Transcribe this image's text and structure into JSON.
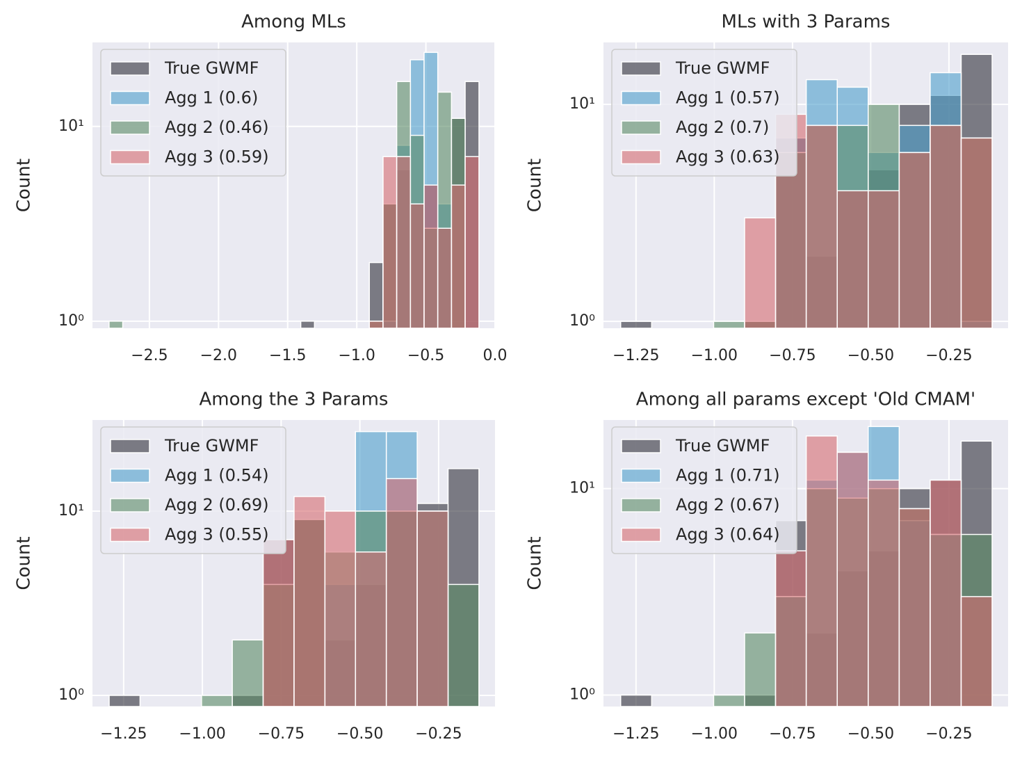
{
  "chart_data": [
    {
      "type": "histogram",
      "title": "Among MLs",
      "ylabel": "Count",
      "log_y": true,
      "grid": true,
      "legend": "upper left",
      "bins": [
        -2.792,
        -2.693,
        -2.594,
        -2.495,
        -2.396,
        -2.296,
        -2.197,
        -2.098,
        -1.999,
        -1.9,
        -1.801,
        -1.702,
        -1.603,
        -1.504,
        -1.405,
        -1.306,
        -1.206,
        -1.107,
        -1.008,
        -0.909,
        -0.81,
        -0.711,
        -0.612,
        -0.513,
        -0.414,
        -0.315,
        -0.216,
        -0.116
      ],
      "series": [
        {
          "name": "True GWMF",
          "color": "#2f2f38",
          "values": [
            0,
            0,
            0,
            0,
            0,
            0,
            0,
            0,
            0,
            0,
            0,
            0,
            0,
            0,
            1,
            0,
            0,
            0,
            0,
            2,
            4,
            6,
            4,
            5,
            3,
            11,
            17
          ]
        },
        {
          "name": "Agg 1 (0.6)",
          "color": "#4c9fcb",
          "values": [
            0,
            0,
            0,
            0,
            0,
            0,
            0,
            0,
            0,
            0,
            0,
            0,
            0,
            0,
            0,
            0,
            0,
            0,
            0,
            0,
            1,
            8,
            22,
            24,
            4,
            0,
            0
          ]
        },
        {
          "name": "Agg 2 (0.46)",
          "color": "#5a8a65",
          "values": [
            1,
            0,
            0,
            0,
            0,
            0,
            0,
            0,
            0,
            0,
            0,
            0,
            0,
            0,
            0,
            0,
            0,
            0,
            0,
            1,
            4,
            17,
            9,
            3,
            15,
            11,
            0
          ]
        },
        {
          "name": "Agg 3 (0.59)",
          "color": "#d56b6f",
          "values": [
            0,
            0,
            0,
            0,
            0,
            0,
            0,
            0,
            0,
            0,
            0,
            0,
            0,
            0,
            0,
            0,
            0,
            0,
            0,
            1,
            7,
            7,
            4,
            5,
            3,
            5,
            7
          ]
        }
      ],
      "xlim": [
        -2.912,
        0.0
      ],
      "xticks": [
        {
          "value": -2.5,
          "label": "−2.5"
        },
        {
          "value": -2.0,
          "label": "−2.0"
        },
        {
          "value": -1.5,
          "label": "−1.5"
        },
        {
          "value": -1.0,
          "label": "−1.0"
        },
        {
          "value": -0.5,
          "label": "−0.5"
        },
        {
          "value": 0,
          "label": "0.0"
        }
      ],
      "ylim": [
        0.92,
        27
      ],
      "yticks": [
        {
          "value": 1,
          "label": "10⁰"
        },
        {
          "value": 10,
          "label": "10¹"
        }
      ]
    },
    {
      "type": "histogram",
      "title": "MLs with 3 Params",
      "ylabel": "Count",
      "log_y": true,
      "grid": true,
      "legend": "upper left",
      "bins": [
        -1.299,
        -1.2,
        -1.101,
        -1.002,
        -0.903,
        -0.804,
        -0.706,
        -0.607,
        -0.508,
        -0.409,
        -0.31,
        -0.211,
        -0.112
      ],
      "series": [
        {
          "name": "True GWMF",
          "color": "#2f2f38",
          "values": [
            1,
            0,
            0,
            0,
            1,
            7,
            2,
            4,
            5,
            10,
            11,
            17
          ]
        },
        {
          "name": "Agg 1 (0.57)",
          "color": "#4c9fcb",
          "values": [
            0,
            0,
            0,
            0,
            0,
            7,
            13,
            12,
            6,
            8,
            14,
            1
          ]
        },
        {
          "name": "Agg 2 (0.7)",
          "color": "#5a8a65",
          "values": [
            0,
            0,
            0,
            1,
            1,
            6,
            8,
            8,
            10,
            6,
            8,
            7
          ]
        },
        {
          "name": "Agg 3 (0.63)",
          "color": "#d56b6f",
          "values": [
            0,
            0,
            0,
            0,
            3,
            9,
            8,
            4,
            4,
            6,
            8,
            7
          ]
        }
      ],
      "xlim": [
        -1.354,
        -0.061
      ],
      "xticks": [
        {
          "value": -1.25,
          "label": "−1.25"
        },
        {
          "value": -1.0,
          "label": "−1.00"
        },
        {
          "value": -0.75,
          "label": "−0.75"
        },
        {
          "value": -0.5,
          "label": "−0.50"
        },
        {
          "value": -0.25,
          "label": "−0.25"
        }
      ],
      "ylim": [
        0.93,
        19.3
      ],
      "yticks": [
        {
          "value": 1,
          "label": "10⁰"
        },
        {
          "value": 10,
          "label": "10¹"
        }
      ]
    },
    {
      "type": "histogram",
      "title": "Among the 3 Params",
      "ylabel": "Count",
      "log_y": true,
      "grid": true,
      "legend": "upper left",
      "bins": [
        -1.296,
        -1.198,
        -1.1,
        -1.003,
        -0.905,
        -0.807,
        -0.709,
        -0.611,
        -0.514,
        -0.416,
        -0.318,
        -0.22,
        -0.122
      ],
      "series": [
        {
          "name": "True GWMF",
          "color": "#2f2f38",
          "values": [
            1,
            0,
            0,
            0,
            1,
            7,
            9,
            2,
            4,
            10,
            11,
            17
          ]
        },
        {
          "name": "Agg 1 (0.54)",
          "color": "#4c9fcb",
          "values": [
            0,
            0,
            0,
            0,
            0,
            0,
            0,
            4,
            27,
            27,
            10,
            0
          ]
        },
        {
          "name": "Agg 2 (0.69)",
          "color": "#5a8a65",
          "values": [
            0,
            0,
            0,
            1,
            2,
            4,
            9,
            6,
            10,
            10,
            10,
            4
          ]
        },
        {
          "name": "Agg 3 (0.55)",
          "color": "#d56b6f",
          "values": [
            0,
            0,
            0,
            0,
            0,
            7,
            12,
            10,
            6,
            15,
            10,
            0
          ]
        }
      ],
      "xlim": [
        -1.349,
        -0.071
      ],
      "xticks": [
        {
          "value": -1.25,
          "label": "−1.25"
        },
        {
          "value": -1.0,
          "label": "−1.00"
        },
        {
          "value": -0.75,
          "label": "−0.75"
        },
        {
          "value": -0.5,
          "label": "−0.50"
        },
        {
          "value": -0.25,
          "label": "−0.25"
        }
      ],
      "ylim": [
        0.87,
        31.2
      ],
      "yticks": [
        {
          "value": 1,
          "label": "10⁰"
        },
        {
          "value": 10,
          "label": "10¹"
        }
      ]
    },
    {
      "type": "histogram",
      "title": "Among all params except 'Old CMAM'",
      "ylabel": "Count",
      "log_y": true,
      "grid": true,
      "legend": "upper left",
      "bins": [
        -1.299,
        -1.2,
        -1.101,
        -1.002,
        -0.903,
        -0.804,
        -0.706,
        -0.607,
        -0.508,
        -0.409,
        -0.31,
        -0.211,
        -0.112
      ],
      "series": [
        {
          "name": "True GWMF",
          "color": "#2f2f38",
          "values": [
            1,
            0,
            0,
            0,
            1,
            7,
            2,
            4,
            5,
            10,
            11,
            17
          ]
        },
        {
          "name": "Agg 1 (0.71)",
          "color": "#4c9fcb",
          "values": [
            0,
            0,
            0,
            0,
            0,
            3,
            11,
            15,
            20,
            7,
            6,
            0
          ]
        },
        {
          "name": "Agg 2 (0.67)",
          "color": "#5a8a65",
          "values": [
            0,
            0,
            0,
            1,
            2,
            3,
            10,
            9,
            10,
            8,
            6,
            6
          ]
        },
        {
          "name": "Agg 3 (0.64)",
          "color": "#d56b6f",
          "values": [
            0,
            0,
            0,
            0,
            0,
            5,
            18,
            15,
            11,
            8,
            11,
            3
          ]
        }
      ],
      "xlim": [
        -1.354,
        -0.061
      ],
      "xticks": [
        {
          "value": -1.25,
          "label": "−1.25"
        },
        {
          "value": -1.0,
          "label": "−1.00"
        },
        {
          "value": -0.75,
          "label": "−0.75"
        },
        {
          "value": -0.5,
          "label": "−0.50"
        },
        {
          "value": -0.25,
          "label": "−0.25"
        }
      ],
      "ylim": [
        0.88,
        21.5
      ],
      "yticks": [
        {
          "value": 1,
          "label": "10⁰"
        },
        {
          "value": 10,
          "label": "10¹"
        }
      ]
    }
  ]
}
